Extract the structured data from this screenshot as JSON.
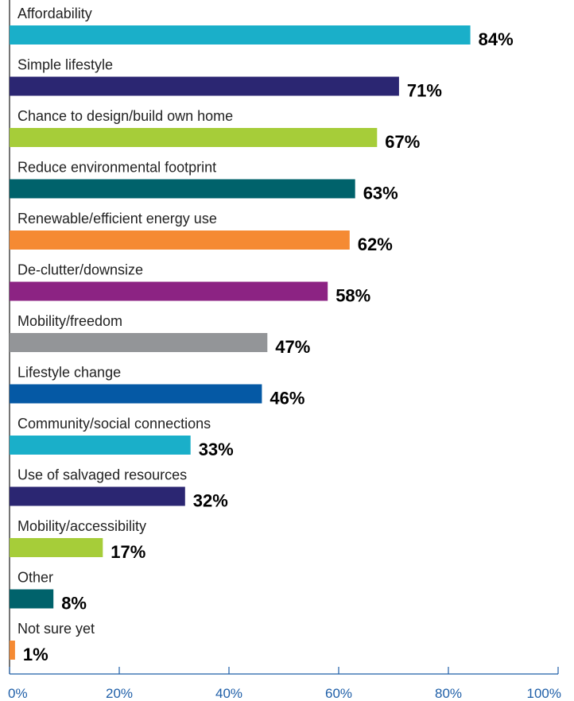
{
  "chart_data": {
    "type": "bar",
    "orientation": "horizontal",
    "categories": [
      "Affordability",
      "Simple lifestyle",
      "Chance to design/build own home",
      "Reduce environmental footprint",
      "Renewable/efficient energy use",
      "De-clutter/downsize",
      "Mobility/freedom",
      "Lifestyle change",
      "Community/social connections",
      "Use of salvaged resources",
      "Mobility/accessibility",
      "Other",
      "Not sure yet"
    ],
    "values": [
      84,
      71,
      67,
      63,
      62,
      58,
      47,
      46,
      33,
      32,
      17,
      8,
      1
    ],
    "value_labels": [
      "84%",
      "71%",
      "67%",
      "63%",
      "62%",
      "58%",
      "47%",
      "46%",
      "33%",
      "32%",
      "17%",
      "8%",
      "1%"
    ],
    "colors": [
      "#1aafc9",
      "#2b2672",
      "#a6cd39",
      "#00626b",
      "#f58a33",
      "#8c2383",
      "#939598",
      "#0559a5",
      "#1aafc9",
      "#2b2672",
      "#a6cd39",
      "#00626b",
      "#f58a33"
    ],
    "xlim": [
      0,
      100
    ],
    "xticks": [
      0,
      20,
      40,
      60,
      80,
      100
    ],
    "xtick_labels": [
      "0%",
      "20%",
      "40%",
      "60%",
      "80%",
      "100%"
    ],
    "axis_color": "#1f5fa8",
    "grid": false,
    "title": "",
    "xlabel": "",
    "ylabel": ""
  }
}
